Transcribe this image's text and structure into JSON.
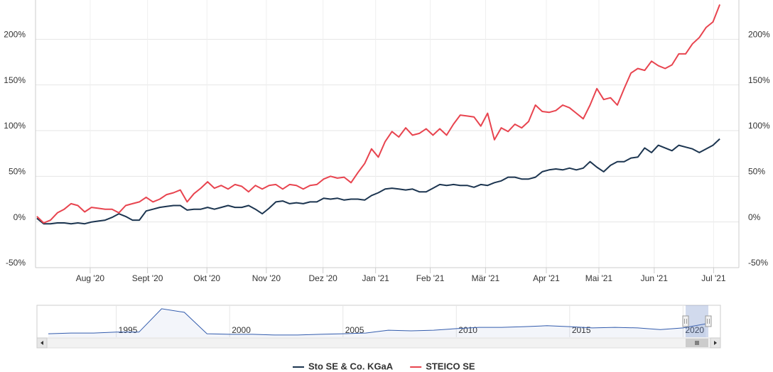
{
  "chart_data": [
    {
      "type": "line",
      "xlim": [
        -0.2,
        102.8
      ],
      "xticks": [
        {
          "value": 7.8,
          "label": "Aug '20"
        },
        {
          "value": 16.2,
          "label": "Sept '20"
        },
        {
          "value": 24.9,
          "label": "Okt '20"
        },
        {
          "value": 33.6,
          "label": "Nov '20"
        },
        {
          "value": 41.9,
          "label": "Dez '20"
        },
        {
          "value": 49.6,
          "label": "Jan '21"
        },
        {
          "value": 57.6,
          "label": "Feb '21"
        },
        {
          "value": 65.7,
          "label": "Mär '21"
        },
        {
          "value": 74.6,
          "label": "Apr '21"
        },
        {
          "value": 82.3,
          "label": "Mai '21"
        },
        {
          "value": 90.4,
          "label": "Jun '21"
        },
        {
          "value": 99.1,
          "label": "Jul '21"
        }
      ],
      "ylim": [
        -50,
        243
      ],
      "yticks": [
        {
          "value": -50,
          "label": "-50%"
        },
        {
          "value": 0,
          "label": "0%"
        },
        {
          "value": 50,
          "label": "50%"
        },
        {
          "value": 100,
          "label": "100%"
        },
        {
          "value": 150,
          "label": "150%"
        },
        {
          "value": 200,
          "label": "200%"
        }
      ],
      "grid": true,
      "series": [
        {
          "name": "Sto SE & Co. KGaA",
          "color": "#1c3550",
          "values": [
            4,
            -2,
            -2,
            -1,
            -1,
            -2,
            -1,
            -2,
            0,
            1,
            2,
            5,
            9,
            6,
            2,
            2,
            12,
            14,
            16,
            17,
            18,
            18,
            13,
            14,
            14,
            16,
            14,
            16,
            18,
            16,
            16,
            18,
            14,
            9,
            15,
            22,
            23,
            20,
            21,
            20,
            22,
            22,
            26,
            25,
            26,
            24,
            25,
            25,
            24,
            29,
            32,
            36,
            37,
            36,
            35,
            36,
            33,
            33,
            37,
            41,
            40,
            41,
            40,
            40,
            38,
            41,
            40,
            43,
            45,
            49,
            49,
            47,
            47,
            49,
            55,
            57,
            58,
            57,
            59,
            57,
            59,
            66,
            60,
            55,
            62,
            66,
            66,
            70,
            71,
            81,
            76,
            84,
            81,
            78,
            84,
            82,
            80,
            76,
            80,
            84,
            91
          ]
        },
        {
          "name": "STEICO SE",
          "color": "#e8444f",
          "values": [
            6,
            -1,
            2,
            10,
            14,
            20,
            18,
            11,
            16,
            15,
            14,
            14,
            10,
            18,
            20,
            22,
            27,
            22,
            25,
            30,
            32,
            35,
            22,
            31,
            37,
            44,
            37,
            40,
            36,
            41,
            39,
            33,
            40,
            36,
            40,
            41,
            36,
            41,
            40,
            36,
            40,
            41,
            47,
            50,
            48,
            49,
            43,
            54,
            64,
            80,
            71,
            88,
            99,
            93,
            103,
            95,
            97,
            102,
            95,
            102,
            95,
            107,
            117,
            116,
            115,
            105,
            119,
            90,
            103,
            99,
            107,
            103,
            110,
            128,
            121,
            120,
            122,
            128,
            125,
            119,
            113,
            128,
            146,
            134,
            136,
            128,
            146,
            163,
            168,
            166,
            176,
            171,
            168,
            172,
            184,
            184,
            195,
            202,
            213,
            219,
            238
          ]
        }
      ]
    },
    {
      "type": "area",
      "x": [
        1992,
        1993,
        1994,
        1995,
        1996,
        1997,
        1998,
        1999,
        2000,
        2001,
        2002,
        2003,
        2004,
        2005,
        2006,
        2007,
        2008,
        2009,
        2010,
        2011,
        2012,
        2013,
        2014,
        2015,
        2016,
        2017,
        2018,
        2019,
        2020,
        2021
      ],
      "values": [
        11,
        13,
        13,
        16,
        16,
        89,
        78,
        11,
        9,
        9,
        7,
        7,
        9,
        11,
        13,
        22,
        20,
        22,
        27,
        31,
        31,
        33,
        36,
        33,
        29,
        31,
        29,
        24,
        29,
        42
      ],
      "xlim": [
        1991.5,
        2021.65
      ],
      "xticks": [
        1995,
        2000,
        2005,
        2010,
        2015,
        2020
      ],
      "ylim": [
        0,
        100
      ],
      "color": "#335cad"
    }
  ]
}
